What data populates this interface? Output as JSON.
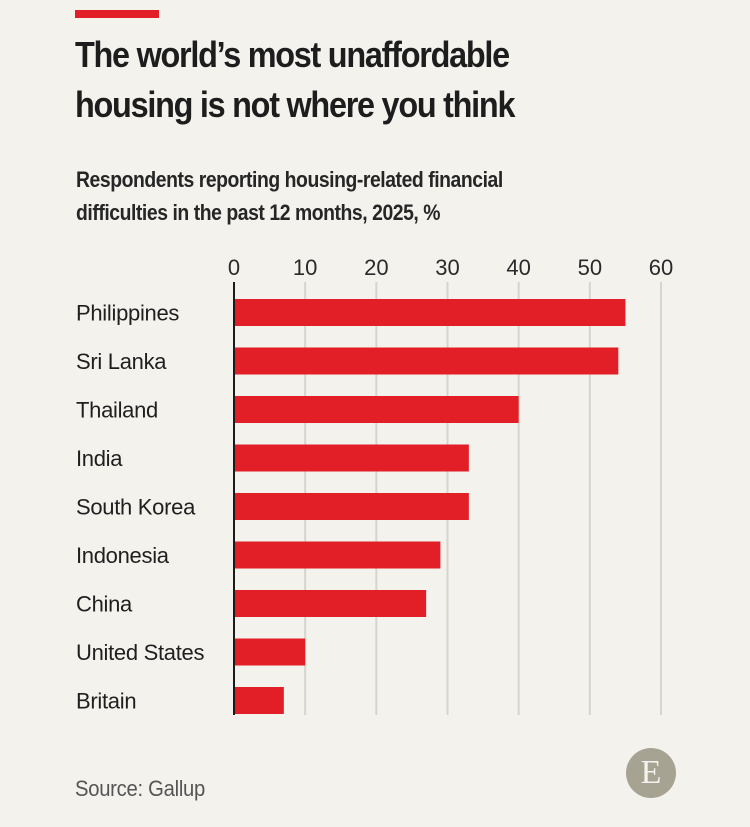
{
  "header": {
    "title_line1": "The world’s most unaffordable",
    "title_line2": "housing is not where you think",
    "subtitle_line1": "Respondents reporting housing-related financial",
    "subtitle_line2": "difficulties in the past 12 months, 2025, %"
  },
  "footer": {
    "source": "Source: Gallup",
    "logo_letter": "E",
    "logo_icon": "economist-logo-icon"
  },
  "colors": {
    "accent": "#e21f26",
    "bar": "#e21f26",
    "background": "#f4f2ed",
    "gridline": "#d6d4cf",
    "axis": "#1b1b1b",
    "logo": "#a7a393"
  },
  "chart_data": {
    "type": "bar",
    "orientation": "horizontal",
    "title": "The world’s most unaffordable housing is not where you think",
    "subtitle": "Respondents reporting housing-related financial difficulties in the past 12 months, 2025, %",
    "categories": [
      "Philippines",
      "Sri Lanka",
      "Thailand",
      "India",
      "South Korea",
      "Indonesia",
      "China",
      "United States",
      "Britain"
    ],
    "values": [
      55,
      54,
      40,
      33,
      33,
      29,
      27,
      10,
      7
    ],
    "xlabel": "",
    "ylabel": "",
    "xlim": [
      0,
      60
    ],
    "xticks": [
      0,
      10,
      20,
      30,
      40,
      50,
      60
    ],
    "xtick_labels": [
      "0",
      "10",
      "20",
      "30",
      "40",
      "50",
      "60"
    ],
    "tick_position": "top",
    "grid": true,
    "legend": "none",
    "source": "Gallup"
  }
}
